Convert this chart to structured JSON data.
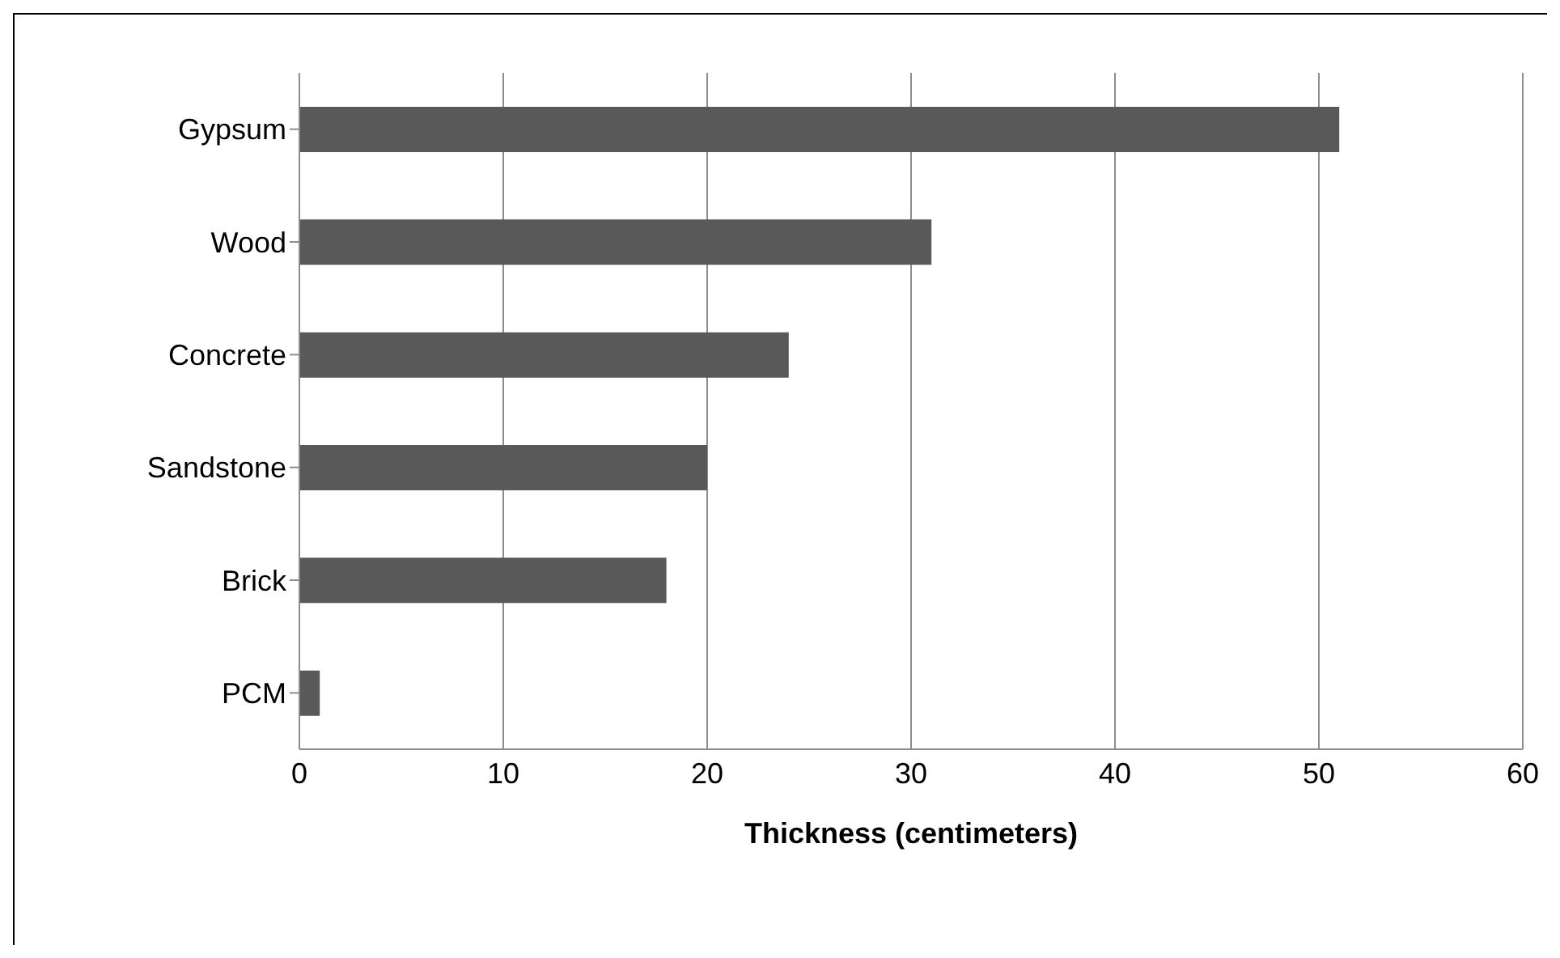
{
  "chart_data": {
    "type": "bar",
    "orientation": "horizontal",
    "xlabel": "Thickness (centimeters)",
    "categories": [
      "Gypsum",
      "Wood",
      "Concrete",
      "Sandstone",
      "Brick",
      "PCM"
    ],
    "values": [
      51,
      31,
      24,
      20,
      18,
      1
    ],
    "color": "#595959",
    "xlim": [
      0,
      60
    ],
    "xticks": [
      0,
      10,
      20,
      30,
      40,
      50,
      60
    ],
    "grid": "x",
    "legend": false
  }
}
